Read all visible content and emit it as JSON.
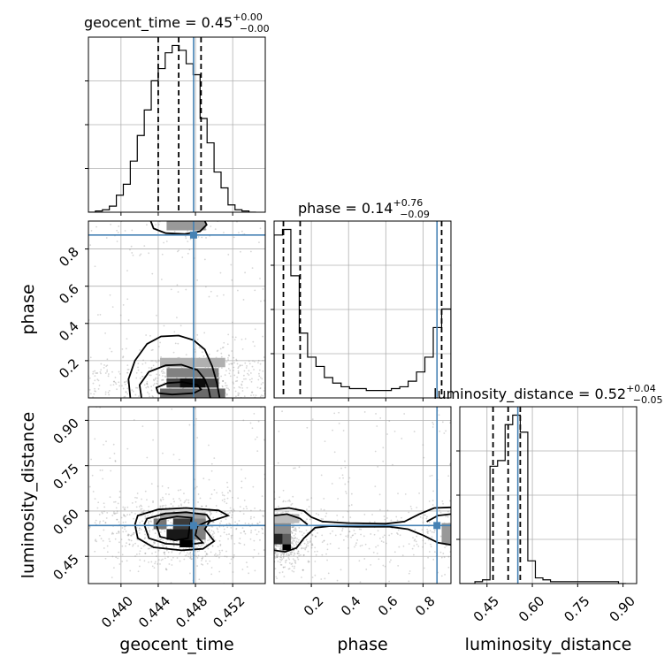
{
  "chart_data": {
    "type": "corner",
    "params": [
      {
        "name": "geocent_time",
        "label": "geocent_time",
        "range": [
          0.4365,
          0.4555
        ],
        "ticks": [
          0.44,
          0.444,
          0.448,
          0.452
        ],
        "tick_labels": [
          "0.440",
          "0.444",
          "0.448",
          "0.452"
        ],
        "title_text": "geocent_time = 0.45",
        "title_sup": "+0.00",
        "title_sub": "−0.00",
        "median": 0.4462,
        "q_low": 0.444,
        "q_high": 0.4486,
        "truth": 0.4478,
        "hist_bins": [
          0.4365,
          0.43725,
          0.438,
          0.43875,
          0.4395,
          0.44025,
          0.441,
          0.44175,
          0.4425,
          0.44325,
          0.444,
          0.44475,
          0.4455,
          0.44625,
          0.447,
          0.44775,
          0.4485,
          0.44925,
          0.45,
          0.45075,
          0.4515,
          0.45225,
          0.453,
          0.45375,
          0.4545
        ],
        "hist_counts": [
          0,
          1,
          2,
          5,
          14,
          23,
          42,
          63,
          84,
          108,
          118,
          131,
          137,
          133,
          122,
          113,
          77,
          57,
          33,
          20,
          6,
          2,
          1,
          0
        ]
      },
      {
        "name": "phase",
        "label": "phase",
        "range": [
          0.0,
          0.95
        ],
        "ticks": [
          0.2,
          0.4,
          0.6,
          0.8
        ],
        "tick_labels": [
          "0.2",
          "0.4",
          "0.6",
          "0.8"
        ],
        "title_text": "phase = 0.14",
        "title_sup": "+0.76",
        "title_sub": "−0.09",
        "median": 0.14,
        "q_low": 0.05,
        "q_high": 0.9,
        "truth": 0.875,
        "hist_bins": [
          0.0,
          0.045,
          0.09,
          0.135,
          0.18,
          0.225,
          0.27,
          0.315,
          0.36,
          0.405,
          0.45,
          0.495,
          0.54,
          0.585,
          0.63,
          0.675,
          0.72,
          0.765,
          0.81,
          0.855,
          0.9,
          0.95
        ],
        "hist_counts": [
          88,
          91,
          66,
          35,
          22,
          17,
          11,
          8,
          6,
          5,
          5,
          4,
          4,
          4,
          5,
          6,
          9,
          14,
          22,
          38,
          48
        ]
      },
      {
        "name": "luminosity_distance",
        "label": "luminosity_distance",
        "range": [
          0.36,
          0.945
        ],
        "ticks": [
          0.45,
          0.6,
          0.75,
          0.9
        ],
        "tick_labels": [
          "0.45",
          "0.60",
          "0.75",
          "0.90"
        ],
        "title_text": "luminosity_distance = 0.52",
        "title_sup": "+0.04",
        "title_sub": "−0.05",
        "median": 0.52,
        "q_low": 0.47,
        "q_high": 0.56,
        "truth": 0.552,
        "hist_bins": [
          0.36,
          0.385,
          0.41,
          0.435,
          0.46,
          0.485,
          0.51,
          0.535,
          0.56,
          0.585,
          0.61,
          0.635,
          0.66,
          0.685,
          0.71,
          0.735,
          0.76,
          0.785,
          0.81,
          0.835,
          0.86,
          0.885,
          0.91
        ],
        "hist_counts": [
          0,
          0,
          1,
          2,
          62,
          65,
          84,
          89,
          80,
          12,
          3,
          2,
          1,
          1,
          1,
          1,
          1,
          1,
          1,
          1,
          1,
          0
        ]
      }
    ],
    "pairs": [
      {
        "x": "geocent_time",
        "y": "phase",
        "y_ticks": [
          0.2,
          0.4,
          0.6,
          0.8
        ],
        "y_tick_labels": [
          "0.2",
          "0.4",
          "0.6",
          "0.8"
        ],
        "truth": [
          0.4478,
          0.875
        ],
        "contours": [
          [
            [
              0.441,
              0.0
            ],
            [
              0.4408,
              0.1
            ],
            [
              0.4415,
              0.2
            ],
            [
              0.4428,
              0.29
            ],
            [
              0.4443,
              0.33
            ],
            [
              0.4462,
              0.335
            ],
            [
              0.4478,
              0.31
            ],
            [
              0.449,
              0.26
            ],
            [
              0.4498,
              0.17
            ],
            [
              0.4503,
              0.08
            ],
            [
              0.4506,
              0.0
            ]
          ],
          [
            [
              0.4422,
              0.0
            ],
            [
              0.442,
              0.07
            ],
            [
              0.443,
              0.14
            ],
            [
              0.4448,
              0.175
            ],
            [
              0.4465,
              0.178
            ],
            [
              0.4482,
              0.15
            ],
            [
              0.449,
              0.1
            ],
            [
              0.4494,
              0.05
            ],
            [
              0.4496,
              0.0
            ]
          ],
          [
            [
              0.444,
              0.025
            ],
            [
              0.4438,
              0.055
            ],
            [
              0.445,
              0.08
            ],
            [
              0.4466,
              0.085
            ],
            [
              0.4482,
              0.07
            ],
            [
              0.4486,
              0.045
            ],
            [
              0.4478,
              0.025
            ],
            [
              0.4455,
              0.018
            ],
            [
              0.444,
              0.025
            ]
          ],
          [
            [
              0.4432,
              0.95
            ],
            [
              0.4435,
              0.91
            ],
            [
              0.4448,
              0.885
            ],
            [
              0.4468,
              0.88
            ],
            [
              0.4485,
              0.895
            ],
            [
              0.4492,
              0.93
            ],
            [
              0.449,
              0.95
            ]
          ]
        ],
        "density_cells": [
          {
            "x": 0.4463,
            "y": 0.055,
            "w": 0.0028,
            "h": 0.05,
            "level": 0.95
          },
          {
            "x": 0.4449,
            "y": 0.055,
            "w": 0.0014,
            "h": 0.05,
            "level": 0.7
          },
          {
            "x": 0.4491,
            "y": 0.055,
            "w": 0.0014,
            "h": 0.05,
            "level": 0.7
          },
          {
            "x": 0.4449,
            "y": 0.11,
            "w": 0.0056,
            "h": 0.05,
            "level": 0.45
          },
          {
            "x": 0.4442,
            "y": 0.165,
            "w": 0.007,
            "h": 0.05,
            "level": 0.25
          },
          {
            "x": 0.4442,
            "y": 0.0,
            "w": 0.007,
            "h": 0.05,
            "level": 0.55
          },
          {
            "x": 0.4449,
            "y": 0.9,
            "w": 0.0042,
            "h": 0.05,
            "level": 0.35
          }
        ]
      },
      {
        "x": "geocent_time",
        "y": "luminosity_distance",
        "y_ticks": [
          0.45,
          0.6,
          0.75,
          0.9
        ],
        "y_tick_labels": [
          "0.45",
          "0.60",
          "0.75",
          "0.90"
        ],
        "truth": [
          0.4478,
          0.552
        ],
        "contours": [
          [
            [
              0.4415,
              0.555
            ],
            [
              0.4418,
              0.585
            ],
            [
              0.444,
              0.605
            ],
            [
              0.447,
              0.61
            ],
            [
              0.4505,
              0.602
            ],
            [
              0.4515,
              0.585
            ],
            [
              0.4495,
              0.565
            ],
            [
              0.449,
              0.54
            ],
            [
              0.45,
              0.5
            ],
            [
              0.4488,
              0.475
            ],
            [
              0.4465,
              0.47
            ],
            [
              0.4435,
              0.48
            ],
            [
              0.4418,
              0.51
            ],
            [
              0.4415,
              0.555
            ]
          ],
          [
            [
              0.4425,
              0.555
            ],
            [
              0.4428,
              0.575
            ],
            [
              0.4448,
              0.592
            ],
            [
              0.447,
              0.596
            ],
            [
              0.4492,
              0.588
            ],
            [
              0.4496,
              0.57
            ],
            [
              0.4482,
              0.55
            ],
            [
              0.448,
              0.52
            ],
            [
              0.4488,
              0.495
            ],
            [
              0.447,
              0.488
            ],
            [
              0.4448,
              0.492
            ],
            [
              0.443,
              0.51
            ],
            [
              0.4425,
              0.555
            ]
          ],
          [
            [
              0.4438,
              0.555
            ],
            [
              0.4442,
              0.572
            ],
            [
              0.446,
              0.582
            ],
            [
              0.4476,
              0.578
            ],
            [
              0.4474,
              0.55
            ],
            [
              0.4472,
              0.51
            ],
            [
              0.4458,
              0.503
            ],
            [
              0.4442,
              0.515
            ],
            [
              0.4438,
              0.555
            ]
          ]
        ],
        "density_cells": [
          {
            "x": 0.4449,
            "y": 0.505,
            "w": 0.0028,
            "h": 0.035,
            "level": 0.9
          },
          {
            "x": 0.4456,
            "y": 0.54,
            "w": 0.0021,
            "h": 0.035,
            "level": 0.75
          },
          {
            "x": 0.4463,
            "y": 0.48,
            "w": 0.0014,
            "h": 0.025,
            "level": 1.0
          },
          {
            "x": 0.4435,
            "y": 0.54,
            "w": 0.0014,
            "h": 0.035,
            "level": 0.5
          },
          {
            "x": 0.4477,
            "y": 0.505,
            "w": 0.0014,
            "h": 0.07,
            "level": 0.45
          },
          {
            "x": 0.4442,
            "y": 0.575,
            "w": 0.0049,
            "h": 0.02,
            "level": 0.3
          }
        ]
      },
      {
        "x": "phase",
        "y": "luminosity_distance",
        "y_ticks": [
          0.45,
          0.6,
          0.75,
          0.9
        ],
        "y_tick_labels": [
          "0.45",
          "0.60",
          "0.75",
          "0.90"
        ],
        "truth": [
          0.875,
          0.552
        ],
        "contours": [
          [
            [
              0.0,
              0.605
            ],
            [
              0.08,
              0.61
            ],
            [
              0.16,
              0.6
            ],
            [
              0.2,
              0.58
            ],
            [
              0.26,
              0.565
            ],
            [
              0.4,
              0.56
            ],
            [
              0.6,
              0.558
            ],
            [
              0.7,
              0.565
            ],
            [
              0.78,
              0.59
            ],
            [
              0.86,
              0.61
            ],
            [
              0.95,
              0.612
            ]
          ],
          [
            [
              0.0,
              0.47
            ],
            [
              0.06,
              0.465
            ],
            [
              0.12,
              0.478
            ],
            [
              0.16,
              0.51
            ],
            [
              0.22,
              0.545
            ],
            [
              0.3,
              0.55
            ],
            [
              0.45,
              0.548
            ],
            [
              0.62,
              0.548
            ],
            [
              0.72,
              0.54
            ],
            [
              0.8,
              0.52
            ],
            [
              0.88,
              0.495
            ],
            [
              0.95,
              0.488
            ]
          ],
          [
            [
              0.0,
              0.585
            ],
            [
              0.07,
              0.59
            ],
            [
              0.14,
              0.575
            ],
            [
              0.18,
              0.555
            ]
          ],
          [
            [
              0.82,
              0.565
            ],
            [
              0.88,
              0.585
            ],
            [
              0.95,
              0.59
            ]
          ]
        ],
        "density_cells": [
          {
            "x": 0.0,
            "y": 0.49,
            "w": 0.045,
            "h": 0.035,
            "level": 0.85
          },
          {
            "x": 0.045,
            "y": 0.49,
            "w": 0.045,
            "h": 0.035,
            "level": 0.6
          },
          {
            "x": 0.045,
            "y": 0.47,
            "w": 0.045,
            "h": 0.02,
            "level": 1.0
          },
          {
            "x": 0.0,
            "y": 0.525,
            "w": 0.09,
            "h": 0.035,
            "level": 0.4
          },
          {
            "x": 0.0,
            "y": 0.56,
            "w": 0.135,
            "h": 0.03,
            "level": 0.2
          },
          {
            "x": 0.9,
            "y": 0.49,
            "w": 0.05,
            "h": 0.07,
            "level": 0.35
          }
        ]
      }
    ]
  }
}
